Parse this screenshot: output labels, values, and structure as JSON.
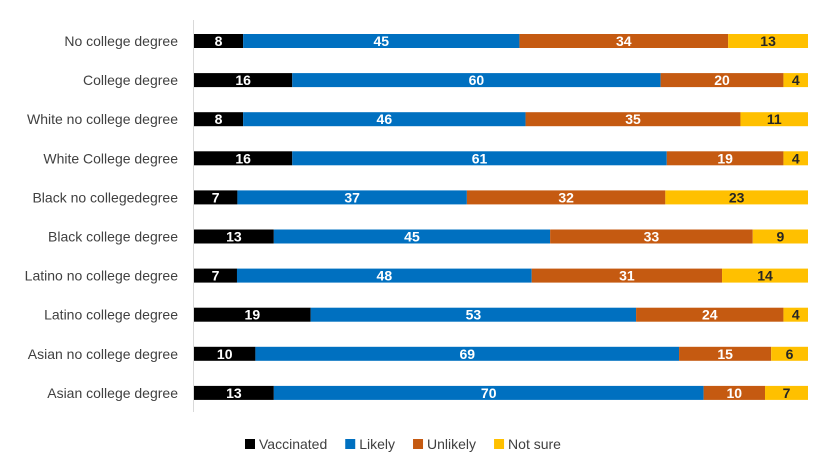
{
  "chart_data": {
    "type": "bar",
    "orientation": "horizontal",
    "stacked": true,
    "normalized": true,
    "title": "",
    "xlabel": "",
    "ylabel": "",
    "categories": [
      "No college degree",
      "College degree",
      "White no college degree",
      "White College degree",
      "Black no collegedegree",
      "Black college degree",
      "Latino no college degree",
      "Latino college degree",
      "Asian no college degree",
      "Asian college degree"
    ],
    "series": [
      {
        "name": "Vaccinated",
        "color": "#000000",
        "label_color": "#ffffff",
        "values": [
          8,
          16,
          8,
          16,
          7,
          13,
          7,
          19,
          10,
          13
        ]
      },
      {
        "name": "Likely",
        "color": "#0070C0",
        "label_color": "#ffffff",
        "values": [
          45,
          60,
          46,
          61,
          37,
          45,
          48,
          53,
          69,
          70
        ]
      },
      {
        "name": "Unlikely",
        "color": "#C55A11",
        "label_color": "#ffffff",
        "values": [
          34,
          20,
          35,
          19,
          32,
          33,
          31,
          24,
          15,
          10
        ]
      },
      {
        "name": "Not sure",
        "color": "#FFC000",
        "label_color": "#262626",
        "values": [
          13,
          4,
          11,
          4,
          23,
          9,
          14,
          4,
          6,
          7
        ]
      }
    ],
    "legend_position": "bottom",
    "grid": false
  }
}
